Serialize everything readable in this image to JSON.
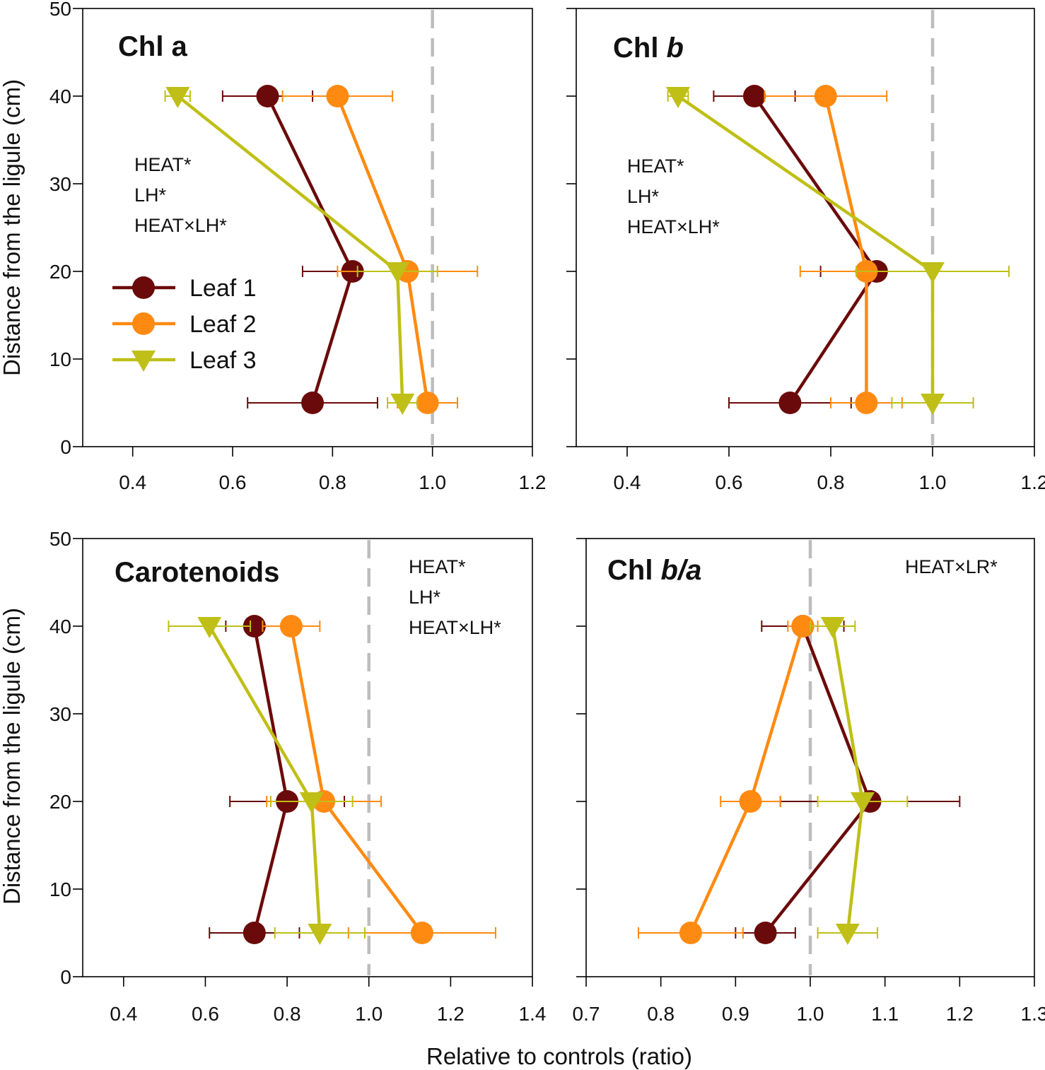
{
  "figure": {
    "ylabel": "Distance from the ligule (cm)",
    "xlabel": "Relative to controls (ratio)"
  },
  "legend": [
    {
      "label": "Leaf 1",
      "color": "#6b0a0a",
      "marker": "circle"
    },
    {
      "label": "Leaf 2",
      "color": "#ff8a12",
      "marker": "circle"
    },
    {
      "label": "Leaf 3",
      "color": "#bfbf17",
      "marker": "triangle-down"
    }
  ],
  "chart_data": [
    {
      "type": "line",
      "title": "Chl a",
      "title_parts": [
        {
          "text": "Chl a",
          "italic": false
        }
      ],
      "xlim": [
        0.3,
        1.2
      ],
      "xticks": [
        0.4,
        0.6,
        0.8,
        1.0,
        1.2
      ],
      "xtick_labels": [
        "0.4",
        "0.6",
        "0.8",
        "1.0",
        "1.2"
      ],
      "ylim": [
        0,
        50
      ],
      "yticks": [
        0,
        10,
        20,
        30,
        40,
        50
      ],
      "ytick_labels": [
        "0",
        "10",
        "20",
        "30",
        "40",
        "50"
      ],
      "reference_x": 1.0,
      "stats": [
        "HEAT*",
        "LH*",
        "HEAT×LH*"
      ],
      "series": [
        {
          "name": "Leaf 1",
          "color": "#6b0a0a",
          "marker": "circle",
          "points": [
            {
              "x": 0.76,
              "y": 5,
              "err": 0.13
            },
            {
              "x": 0.84,
              "y": 20,
              "err": 0.1
            },
            {
              "x": 0.67,
              "y": 40,
              "err": 0.09
            }
          ]
        },
        {
          "name": "Leaf 2",
          "color": "#ff8a12",
          "marker": "circle",
          "points": [
            {
              "x": 0.99,
              "y": 5,
              "err": 0.06
            },
            {
              "x": 0.95,
              "y": 20,
              "err": 0.14
            },
            {
              "x": 0.81,
              "y": 40,
              "err": 0.11
            }
          ]
        },
        {
          "name": "Leaf 3",
          "color": "#bfbf17",
          "marker": "triangle-down",
          "points": [
            {
              "x": 0.94,
              "y": 5,
              "err": 0.03
            },
            {
              "x": 0.93,
              "y": 20,
              "err": 0.08
            },
            {
              "x": 0.49,
              "y": 40,
              "err": 0.025
            }
          ]
        }
      ]
    },
    {
      "type": "line",
      "title": "Chl b",
      "title_parts": [
        {
          "text": "Chl ",
          "italic": false
        },
        {
          "text": "b",
          "italic": true
        }
      ],
      "xlim": [
        0.3,
        1.2
      ],
      "xticks": [
        0.4,
        0.6,
        0.8,
        1.0,
        1.2
      ],
      "xtick_labels": [
        "0.4",
        "0.6",
        "0.8",
        "1.0",
        "1.2"
      ],
      "ylim": [
        0,
        50
      ],
      "yticks": [
        0,
        10,
        20,
        30,
        40,
        50
      ],
      "ytick_labels": [],
      "reference_x": 1.0,
      "stats": [
        "HEAT*",
        "LH*",
        "HEAT×LH*"
      ],
      "series": [
        {
          "name": "Leaf 1",
          "color": "#6b0a0a",
          "marker": "circle",
          "points": [
            {
              "x": 0.72,
              "y": 5,
              "err": 0.12
            },
            {
              "x": 0.89,
              "y": 20,
              "err": 0.11
            },
            {
              "x": 0.65,
              "y": 40,
              "err": 0.08
            }
          ]
        },
        {
          "name": "Leaf 2",
          "color": "#ff8a12",
          "marker": "circle",
          "points": [
            {
              "x": 0.87,
              "y": 5,
              "err": 0.07
            },
            {
              "x": 0.87,
              "y": 20,
              "err": 0.13
            },
            {
              "x": 0.79,
              "y": 40,
              "err": 0.12
            }
          ]
        },
        {
          "name": "Leaf 3",
          "color": "#bfbf17",
          "marker": "triangle-down",
          "points": [
            {
              "x": 1.0,
              "y": 5,
              "err": 0.08
            },
            {
              "x": 1.0,
              "y": 20,
              "err": 0.15
            },
            {
              "x": 0.5,
              "y": 40,
              "err": 0.02
            }
          ]
        }
      ]
    },
    {
      "type": "line",
      "title": "Carotenoids",
      "title_parts": [
        {
          "text": "Carotenoids",
          "italic": false
        }
      ],
      "xlim": [
        0.3,
        1.4
      ],
      "xticks": [
        0.4,
        0.6,
        0.8,
        1.0,
        1.2,
        1.4
      ],
      "xtick_labels": [
        "0.4",
        "0.6",
        "0.8",
        "1.0",
        "1.2",
        "1.4"
      ],
      "ylim": [
        0,
        50
      ],
      "yticks": [
        0,
        10,
        20,
        30,
        40,
        50
      ],
      "ytick_labels": [
        "0",
        "10",
        "20",
        "30",
        "40",
        "50"
      ],
      "reference_x": 1.0,
      "stats": [
        "HEAT*",
        "LH*",
        "HEAT×LH*"
      ],
      "series": [
        {
          "name": "Leaf 1",
          "color": "#6b0a0a",
          "marker": "circle",
          "points": [
            {
              "x": 0.72,
              "y": 5,
              "err": 0.11
            },
            {
              "x": 0.8,
              "y": 20,
              "err": 0.14
            },
            {
              "x": 0.72,
              "y": 40,
              "err": 0.07
            }
          ]
        },
        {
          "name": "Leaf 2",
          "color": "#ff8a12",
          "marker": "circle",
          "points": [
            {
              "x": 1.13,
              "y": 5,
              "err": 0.18
            },
            {
              "x": 0.89,
              "y": 20,
              "err": 0.14
            },
            {
              "x": 0.81,
              "y": 40,
              "err": 0.07
            }
          ]
        },
        {
          "name": "Leaf 3",
          "color": "#bfbf17",
          "marker": "triangle-down",
          "points": [
            {
              "x": 0.88,
              "y": 5,
              "err": 0.11
            },
            {
              "x": 0.86,
              "y": 20,
              "err": 0.1
            },
            {
              "x": 0.61,
              "y": 40,
              "err": 0.1
            }
          ]
        }
      ]
    },
    {
      "type": "line",
      "title": "Chl b/a",
      "title_parts": [
        {
          "text": "Chl ",
          "italic": false
        },
        {
          "text": "b/a",
          "italic": true
        }
      ],
      "xlim": [
        0.7,
        1.3
      ],
      "xticks": [
        0.7,
        0.8,
        0.9,
        1.0,
        1.1,
        1.2,
        1.3
      ],
      "xtick_labels": [
        "0.7",
        "0.8",
        "0.9",
        "1.0",
        "1.1",
        "1.2",
        "1.3"
      ],
      "ylim": [
        0,
        50
      ],
      "yticks": [
        0,
        10,
        20,
        30,
        40,
        50
      ],
      "ytick_labels": [],
      "reference_x": 1.0,
      "stats": [
        "HEAT×LR*"
      ],
      "series": [
        {
          "name": "Leaf 1",
          "color": "#6b0a0a",
          "marker": "circle",
          "points": [
            {
              "x": 0.94,
              "y": 5,
              "err": 0.04
            },
            {
              "x": 1.08,
              "y": 20,
              "err": 0.12
            },
            {
              "x": 0.99,
              "y": 40,
              "err": 0.055
            }
          ]
        },
        {
          "name": "Leaf 2",
          "color": "#ff8a12",
          "marker": "circle",
          "points": [
            {
              "x": 0.84,
              "y": 5,
              "err": 0.07
            },
            {
              "x": 0.92,
              "y": 20,
              "err": 0.04
            },
            {
              "x": 0.99,
              "y": 40,
              "err": 0.02
            }
          ]
        },
        {
          "name": "Leaf 3",
          "color": "#bfbf17",
          "marker": "triangle-down",
          "points": [
            {
              "x": 1.05,
              "y": 5,
              "err": 0.04
            },
            {
              "x": 1.07,
              "y": 20,
              "err": 0.06
            },
            {
              "x": 1.03,
              "y": 40,
              "err": 0.03
            }
          ]
        }
      ]
    }
  ]
}
